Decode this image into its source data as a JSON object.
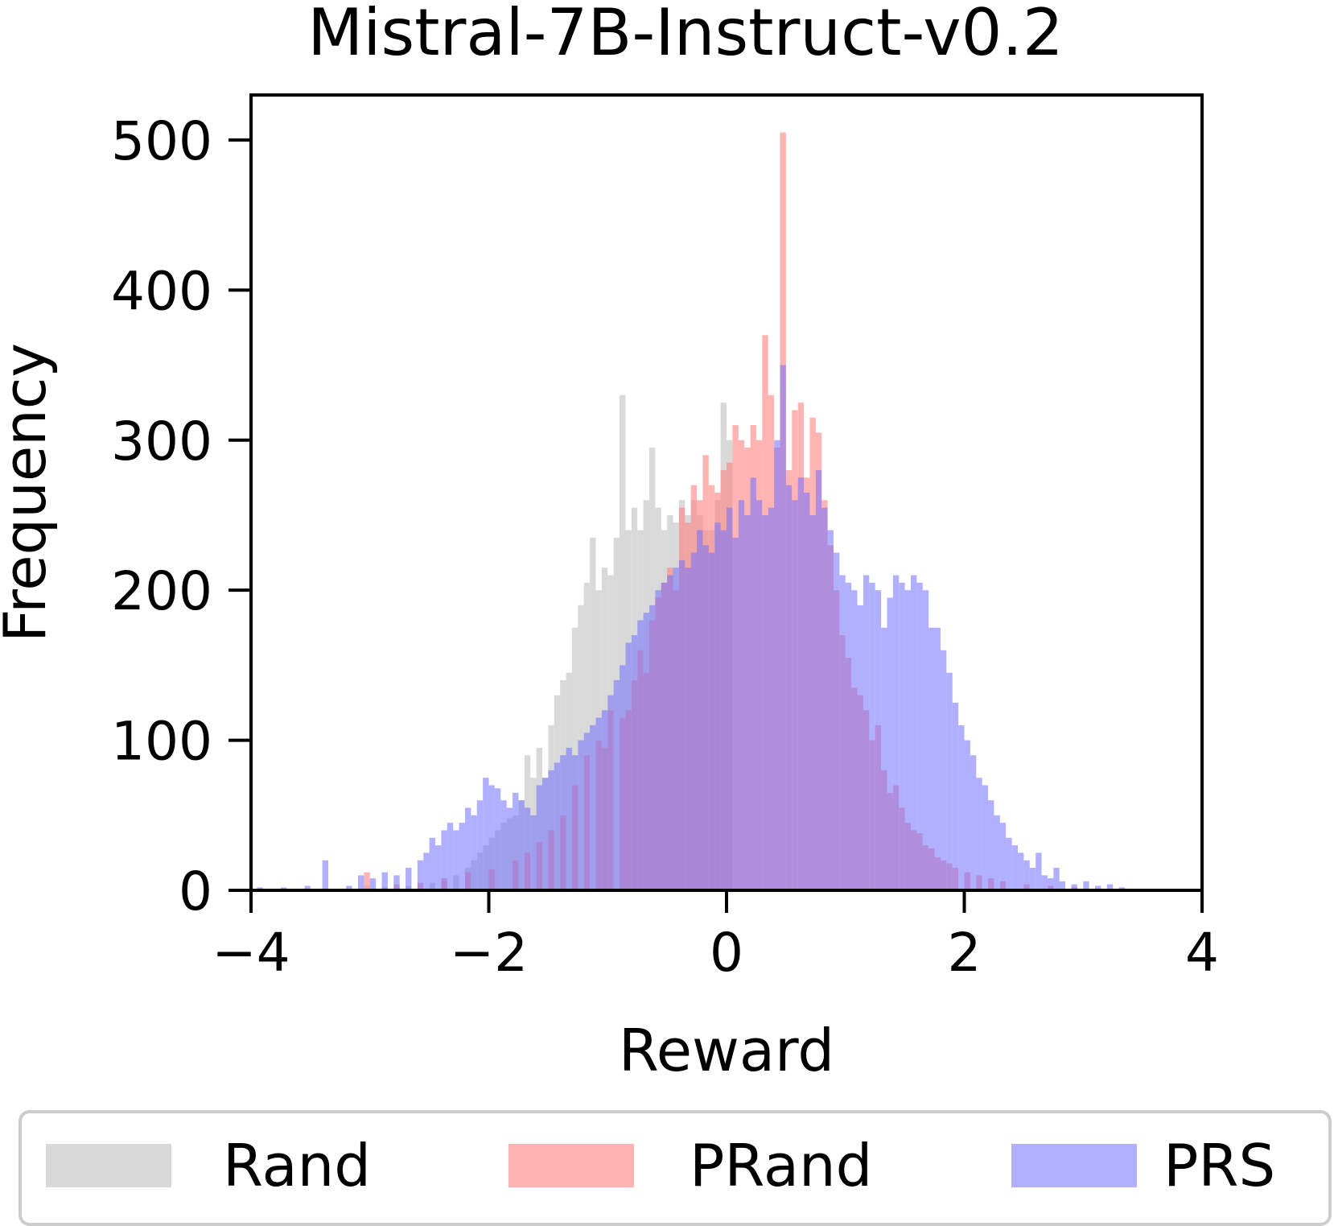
{
  "chart_data": {
    "type": "bar",
    "title": "Mistral-7B-Instruct-v0.2",
    "xlabel": "Reward",
    "ylabel": "Frequency",
    "xlim": [
      -4,
      4
    ],
    "ylim": [
      0,
      530
    ],
    "xticks": [
      -4,
      -2,
      0,
      2,
      4
    ],
    "xtick_labels": [
      "−4",
      "−2",
      "0",
      "2",
      "4"
    ],
    "yticks": [
      0,
      100,
      200,
      300,
      400,
      500
    ],
    "ytick_labels": [
      "0",
      "100",
      "200",
      "300",
      "400",
      "500"
    ],
    "bin_width": 0.05,
    "grid": false,
    "legend": {
      "placement": "below-plot",
      "columns": 3
    },
    "series": [
      {
        "name": "Rand",
        "color": "#d0d0d0",
        "opacity": 0.8,
        "bins": [
          [
            -3.4,
            1
          ],
          [
            -3.05,
            3
          ],
          [
            -2.9,
            2
          ],
          [
            -2.7,
            3
          ],
          [
            -2.5,
            5
          ],
          [
            -2.4,
            6
          ],
          [
            -2.3,
            10
          ],
          [
            -2.2,
            15
          ],
          [
            -2.15,
            20
          ],
          [
            -2.1,
            25
          ],
          [
            -2.05,
            30
          ],
          [
            -2.0,
            35
          ],
          [
            -1.95,
            40
          ],
          [
            -1.9,
            45
          ],
          [
            -1.85,
            48
          ],
          [
            -1.8,
            50
          ],
          [
            -1.75,
            60
          ],
          [
            -1.7,
            90
          ],
          [
            -1.65,
            75
          ],
          [
            -1.6,
            95
          ],
          [
            -1.55,
            75
          ],
          [
            -1.5,
            110
          ],
          [
            -1.45,
            130
          ],
          [
            -1.4,
            140
          ],
          [
            -1.35,
            145
          ],
          [
            -1.3,
            175
          ],
          [
            -1.25,
            190
          ],
          [
            -1.2,
            205
          ],
          [
            -1.15,
            235
          ],
          [
            -1.1,
            200
          ],
          [
            -1.05,
            215
          ],
          [
            -1.0,
            210
          ],
          [
            -0.95,
            235
          ],
          [
            -0.9,
            330
          ],
          [
            -0.85,
            240
          ],
          [
            -0.8,
            255
          ],
          [
            -0.75,
            240
          ],
          [
            -0.7,
            260
          ],
          [
            -0.65,
            295
          ],
          [
            -0.6,
            255
          ],
          [
            -0.55,
            240
          ],
          [
            -0.5,
            250
          ],
          [
            -0.45,
            245
          ],
          [
            -0.4,
            260
          ],
          [
            -0.35,
            250
          ],
          [
            -0.3,
            260
          ],
          [
            -0.25,
            250
          ],
          [
            -0.2,
            240
          ],
          [
            -0.15,
            240
          ],
          [
            -0.1,
            260
          ],
          [
            -0.05,
            325
          ],
          [
            0.0,
            300
          ]
        ]
      },
      {
        "name": "PRand",
        "color": "#ff8080",
        "opacity": 0.6,
        "bins": [
          [
            -3.05,
            12
          ],
          [
            -2.8,
            4
          ],
          [
            -2.6,
            5
          ],
          [
            -2.4,
            8
          ],
          [
            -2.2,
            12
          ],
          [
            -2.0,
            14
          ],
          [
            -1.8,
            20
          ],
          [
            -1.7,
            25
          ],
          [
            -1.6,
            32
          ],
          [
            -1.5,
            40
          ],
          [
            -1.4,
            50
          ],
          [
            -1.3,
            70
          ],
          [
            -1.2,
            90
          ],
          [
            -1.1,
            100
          ],
          [
            -1.05,
            95
          ],
          [
            -1.0,
            120
          ],
          [
            -0.9,
            115
          ],
          [
            -0.85,
            120
          ],
          [
            -0.8,
            140
          ],
          [
            -0.75,
            160
          ],
          [
            -0.7,
            145
          ],
          [
            -0.65,
            180
          ],
          [
            -0.6,
            195
          ],
          [
            -0.55,
            205
          ],
          [
            -0.5,
            215
          ],
          [
            -0.45,
            200
          ],
          [
            -0.4,
            255
          ],
          [
            -0.35,
            245
          ],
          [
            -0.3,
            270
          ],
          [
            -0.25,
            260
          ],
          [
            -0.2,
            290
          ],
          [
            -0.15,
            270
          ],
          [
            -0.1,
            265
          ],
          [
            -0.05,
            280
          ],
          [
            0.0,
            285
          ],
          [
            0.05,
            310
          ],
          [
            0.1,
            300
          ],
          [
            0.15,
            295
          ],
          [
            0.2,
            310
          ],
          [
            0.25,
            300
          ],
          [
            0.3,
            370
          ],
          [
            0.35,
            330
          ],
          [
            0.4,
            295
          ],
          [
            0.45,
            505
          ],
          [
            0.5,
            280
          ],
          [
            0.55,
            320
          ],
          [
            0.6,
            325
          ],
          [
            0.65,
            275
          ],
          [
            0.7,
            315
          ],
          [
            0.75,
            305
          ],
          [
            0.8,
            260
          ],
          [
            0.85,
            230
          ],
          [
            0.9,
            200
          ],
          [
            0.95,
            170
          ],
          [
            1.0,
            155
          ],
          [
            1.05,
            135
          ],
          [
            1.1,
            130
          ],
          [
            1.15,
            120
          ],
          [
            1.2,
            100
          ],
          [
            1.25,
            110
          ],
          [
            1.3,
            80
          ],
          [
            1.35,
            65
          ],
          [
            1.4,
            70
          ],
          [
            1.45,
            55
          ],
          [
            1.5,
            45
          ],
          [
            1.55,
            40
          ],
          [
            1.6,
            38
          ],
          [
            1.65,
            30
          ],
          [
            1.7,
            28
          ],
          [
            1.75,
            22
          ],
          [
            1.8,
            20
          ],
          [
            1.85,
            18
          ],
          [
            1.9,
            15
          ],
          [
            2.0,
            12
          ],
          [
            2.1,
            10
          ],
          [
            2.2,
            8
          ],
          [
            2.3,
            6
          ],
          [
            2.5,
            4
          ],
          [
            2.7,
            3
          ],
          [
            2.9,
            2
          ]
        ]
      },
      {
        "name": "PRS",
        "color": "#7070ff",
        "opacity": 0.55,
        "bins": [
          [
            -3.95,
            2
          ],
          [
            -3.75,
            2
          ],
          [
            -3.55,
            3
          ],
          [
            -3.4,
            20
          ],
          [
            -3.2,
            3
          ],
          [
            -3.1,
            10
          ],
          [
            -3.0,
            8
          ],
          [
            -2.9,
            12
          ],
          [
            -2.8,
            10
          ],
          [
            -2.7,
            15
          ],
          [
            -2.6,
            20
          ],
          [
            -2.55,
            25
          ],
          [
            -2.5,
            35
          ],
          [
            -2.45,
            30
          ],
          [
            -2.4,
            40
          ],
          [
            -2.35,
            45
          ],
          [
            -2.3,
            40
          ],
          [
            -2.25,
            45
          ],
          [
            -2.2,
            55
          ],
          [
            -2.15,
            50
          ],
          [
            -2.1,
            60
          ],
          [
            -2.05,
            75
          ],
          [
            -2.0,
            70
          ],
          [
            -1.95,
            68
          ],
          [
            -1.9,
            60
          ],
          [
            -1.85,
            55
          ],
          [
            -1.8,
            65
          ],
          [
            -1.75,
            60
          ],
          [
            -1.7,
            55
          ],
          [
            -1.65,
            50
          ],
          [
            -1.6,
            70
          ],
          [
            -1.55,
            75
          ],
          [
            -1.5,
            80
          ],
          [
            -1.45,
            85
          ],
          [
            -1.4,
            90
          ],
          [
            -1.35,
            95
          ],
          [
            -1.3,
            90
          ],
          [
            -1.25,
            100
          ],
          [
            -1.2,
            105
          ],
          [
            -1.15,
            110
          ],
          [
            -1.1,
            115
          ],
          [
            -1.05,
            120
          ],
          [
            -1.0,
            130
          ],
          [
            -0.95,
            140
          ],
          [
            -0.9,
            150
          ],
          [
            -0.85,
            165
          ],
          [
            -0.8,
            170
          ],
          [
            -0.75,
            180
          ],
          [
            -0.7,
            185
          ],
          [
            -0.65,
            190
          ],
          [
            -0.6,
            200
          ],
          [
            -0.55,
            205
          ],
          [
            -0.5,
            210
          ],
          [
            -0.45,
            215
          ],
          [
            -0.4,
            220
          ],
          [
            -0.35,
            215
          ],
          [
            -0.3,
            225
          ],
          [
            -0.25,
            240
          ],
          [
            -0.2,
            230
          ],
          [
            -0.15,
            225
          ],
          [
            -0.1,
            245
          ],
          [
            -0.05,
            240
          ],
          [
            0.0,
            255
          ],
          [
            0.05,
            235
          ],
          [
            0.1,
            260
          ],
          [
            0.15,
            250
          ],
          [
            0.2,
            275
          ],
          [
            0.25,
            260
          ],
          [
            0.3,
            250
          ],
          [
            0.35,
            255
          ],
          [
            0.4,
            300
          ],
          [
            0.45,
            350
          ],
          [
            0.5,
            270
          ],
          [
            0.55,
            260
          ],
          [
            0.6,
            275
          ],
          [
            0.65,
            265
          ],
          [
            0.7,
            250
          ],
          [
            0.75,
            280
          ],
          [
            0.8,
            255
          ],
          [
            0.85,
            240
          ],
          [
            0.9,
            225
          ],
          [
            0.95,
            210
          ],
          [
            1.0,
            205
          ],
          [
            1.05,
            200
          ],
          [
            1.1,
            190
          ],
          [
            1.15,
            210
          ],
          [
            1.2,
            205
          ],
          [
            1.25,
            200
          ],
          [
            1.3,
            175
          ],
          [
            1.35,
            195
          ],
          [
            1.4,
            210
          ],
          [
            1.45,
            205
          ],
          [
            1.5,
            200
          ],
          [
            1.55,
            210
          ],
          [
            1.6,
            205
          ],
          [
            1.65,
            200
          ],
          [
            1.7,
            175
          ],
          [
            1.75,
            175
          ],
          [
            1.8,
            160
          ],
          [
            1.85,
            145
          ],
          [
            1.9,
            125
          ],
          [
            1.95,
            110
          ],
          [
            2.0,
            100
          ],
          [
            2.05,
            90
          ],
          [
            2.1,
            75
          ],
          [
            2.15,
            70
          ],
          [
            2.2,
            60
          ],
          [
            2.25,
            50
          ],
          [
            2.3,
            45
          ],
          [
            2.35,
            35
          ],
          [
            2.4,
            30
          ],
          [
            2.45,
            25
          ],
          [
            2.5,
            20
          ],
          [
            2.55,
            15
          ],
          [
            2.6,
            25
          ],
          [
            2.65,
            10
          ],
          [
            2.7,
            8
          ],
          [
            2.75,
            15
          ],
          [
            2.8,
            6
          ],
          [
            2.9,
            4
          ],
          [
            3.0,
            6
          ],
          [
            3.1,
            3
          ],
          [
            3.2,
            4
          ],
          [
            3.3,
            2
          ]
        ]
      }
    ]
  }
}
